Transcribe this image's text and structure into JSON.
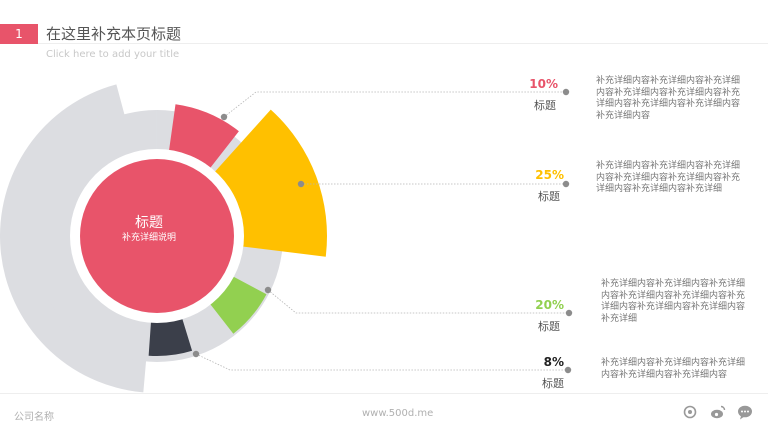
{
  "header": {
    "number": "1",
    "title": "在这里补充本页标题",
    "subtitle": "Click here to add your title"
  },
  "center": {
    "title": "标题",
    "subtitle": "补充详细说明"
  },
  "items": [
    {
      "percent": "10%",
      "label": "标题",
      "color": "#e8546a",
      "description": "补充详细内容补充详细内容补充详细内容补充详细内容补充详细内容补充详细内容补充详细内容补充详细内容补充详细内容"
    },
    {
      "percent": "25%",
      "label": "标题",
      "color": "#ffc000",
      "description": "补充详细内容补充详细内容补充详细内容补充详细内容补充详细内容补充详细内容补充详细内容补充详细"
    },
    {
      "percent": "20%",
      "label": "标题",
      "color": "#92d050",
      "description": "补充详细内容补充详细内容补充详细内容补充详细内容补充详细内容补充详细内容补充详细内容补充详细内容补充详细"
    },
    {
      "percent": "8%",
      "label": "标题",
      "color": "#3b3f4a",
      "description": "补充详细内容补充详细内容补充详细内容补充详细内容补充详细内容"
    }
  ],
  "footer": {
    "company": "公司名称",
    "website": "www.500d.me",
    "icons": [
      "share-icon",
      "weibo-icon",
      "chat-icon"
    ]
  }
}
